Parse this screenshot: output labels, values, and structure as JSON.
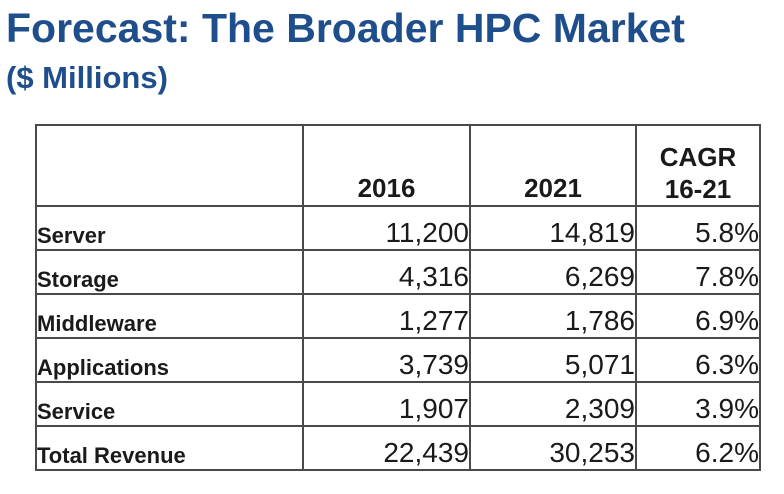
{
  "title": "Forecast: The Broader HPC Market",
  "subtitle": "($ Millions)",
  "chart_data": {
    "type": "table",
    "title": "Forecast: The Broader HPC Market",
    "subtitle": "($ Millions)",
    "header": {
      "col_2016": "2016",
      "col_2021": "2021",
      "cagr_line1": "CAGR",
      "cagr_line2": "16-21"
    },
    "columns": [
      "",
      "2016",
      "2021",
      "CAGR 16-21"
    ],
    "rows": [
      {
        "label": "Server",
        "v2016": "11,200",
        "v2021": "14,819",
        "cagr": "5.8%"
      },
      {
        "label": "Storage",
        "v2016": "4,316",
        "v2021": "6,269",
        "cagr": "7.8%"
      },
      {
        "label": "Middleware",
        "v2016": "1,277",
        "v2021": "1,786",
        "cagr": "6.9%"
      },
      {
        "label": "Applications",
        "v2016": "3,739",
        "v2021": "5,071",
        "cagr": "6.3%"
      },
      {
        "label": "Service",
        "v2016": "1,907",
        "v2021": "2,309",
        "cagr": "3.9%"
      },
      {
        "label": "Total Revenue",
        "v2016": "22,439",
        "v2021": "30,253",
        "cagr": "6.2%"
      }
    ]
  }
}
